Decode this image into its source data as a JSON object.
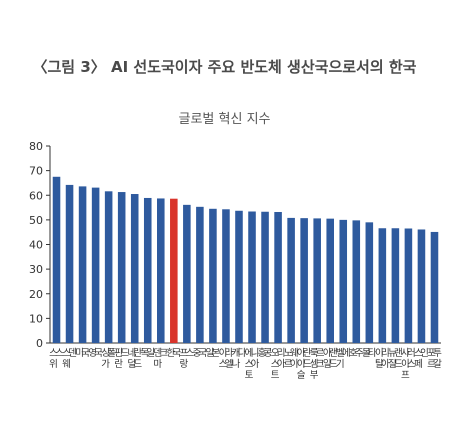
{
  "title": "〈그림 3〉 AI 선도국이자 주요 반도체 생산국으로서의 한국",
  "subtitle": "글로벌 혁신 지수",
  "colors": {
    "bar": "#2e5a9e",
    "highlight": "#d9342b"
  },
  "chart_data": {
    "type": "bar",
    "title": "〈그림 3〉 AI 선도국이자 주요 반도체 생산국으로서의 한국",
    "subtitle": "글로벌 혁신 지수",
    "xlabel": "",
    "ylabel": "",
    "ylim": [
      0,
      80
    ],
    "yticks": [
      0,
      10,
      20,
      30,
      40,
      50,
      60,
      70,
      80
    ],
    "grid": false,
    "highlight": "한국",
    "categories": [
      "스위스",
      "스웨덴",
      "미국",
      "영국",
      "싱가폴",
      "핀란드",
      "네덜란드",
      "독일",
      "덴마크",
      "한국",
      "프랑스",
      "중국",
      "일본",
      "이스라엘",
      "캐나다",
      "에스토니아",
      "홍콩",
      "오스트리아",
      "노르웨이",
      "아이슬란드",
      "룩셈부르크",
      "아일랜드",
      "벨기에",
      "호주",
      "몰타",
      "이탈리아",
      "뉴질랜드",
      "사이프러스",
      "스페인",
      "포르투갈"
    ],
    "values": [
      67.5,
      64.2,
      63.6,
      63.1,
      61.6,
      61.3,
      60.5,
      58.9,
      58.7,
      58.6,
      56.1,
      55.3,
      54.5,
      54.3,
      53.7,
      53.4,
      53.3,
      53.2,
      50.8,
      50.7,
      50.6,
      50.5,
      50.0,
      49.8,
      49.0,
      46.6,
      46.6,
      46.5,
      46.1,
      45.1
    ]
  }
}
